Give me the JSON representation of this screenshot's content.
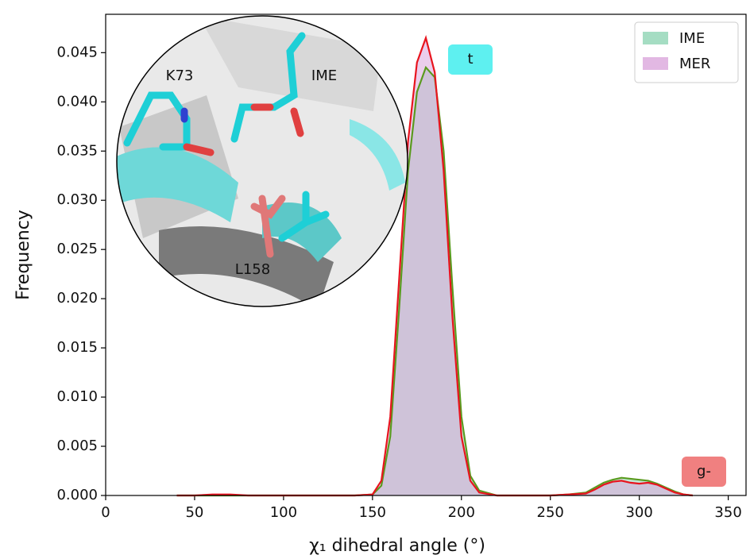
{
  "chart_data": {
    "type": "area",
    "xlabel": "χ₁ dihedral angle (°)",
    "ylabel": "Frequency",
    "x": [
      40,
      50,
      60,
      70,
      80,
      90,
      100,
      110,
      120,
      130,
      140,
      150,
      155,
      160,
      165,
      170,
      175,
      180,
      185,
      190,
      195,
      200,
      205,
      210,
      220,
      230,
      240,
      250,
      260,
      270,
      275,
      280,
      285,
      290,
      295,
      300,
      305,
      310,
      315,
      320,
      325,
      330
    ],
    "series": [
      {
        "name": "IME",
        "color": "#5a9a1e",
        "fill": "#8fd4b4",
        "values": [
          0,
          0,
          0,
          0,
          0,
          0,
          0,
          0,
          0,
          0,
          0,
          0.0001,
          0.001,
          0.006,
          0.019,
          0.033,
          0.041,
          0.0435,
          0.0425,
          0.035,
          0.021,
          0.008,
          0.002,
          0.0005,
          0,
          0,
          0,
          0,
          0.0001,
          0.0003,
          0.0008,
          0.0013,
          0.0016,
          0.0018,
          0.0017,
          0.0016,
          0.0015,
          0.0012,
          0.0008,
          0.0004,
          0.0001,
          0
        ]
      },
      {
        "name": "MER",
        "color": "#e8141e",
        "fill": "#dba6dc",
        "values": [
          0,
          0,
          0.0001,
          0.0001,
          0,
          0,
          0,
          0,
          0,
          0,
          0,
          0.0001,
          0.0015,
          0.008,
          0.022,
          0.036,
          0.044,
          0.0465,
          0.043,
          0.033,
          0.018,
          0.006,
          0.0015,
          0.0003,
          0,
          0,
          0,
          0,
          0.0001,
          0.0002,
          0.0006,
          0.0011,
          0.0014,
          0.0015,
          0.0013,
          0.0012,
          0.0013,
          0.0011,
          0.0007,
          0.0003,
          0.0001,
          0
        ]
      }
    ],
    "xlim": [
      0,
      360
    ],
    "ylim": [
      0,
      0.0489
    ],
    "xticks": [
      0,
      50,
      100,
      150,
      200,
      250,
      300,
      350
    ],
    "yticks": [
      {
        "value": 0,
        "label": "0.000"
      },
      {
        "value": 0.005,
        "label": "0.005"
      },
      {
        "value": 0.01,
        "label": "0.010"
      },
      {
        "value": 0.015,
        "label": "0.015"
      },
      {
        "value": 0.02,
        "label": "0.020"
      },
      {
        "value": 0.025,
        "label": "0.025"
      },
      {
        "value": 0.03,
        "label": "0.030"
      },
      {
        "value": 0.035,
        "label": "0.035"
      },
      {
        "value": 0.04,
        "label": "0.040"
      },
      {
        "value": 0.045,
        "label": "0.045"
      }
    ],
    "legend": "upper right",
    "annotations": [
      {
        "text": "t",
        "color": "#5ef0f0"
      },
      {
        "text": "g-",
        "color": "#f08080"
      }
    ],
    "inset_labels": [
      "K73",
      "IME",
      "L158"
    ]
  }
}
